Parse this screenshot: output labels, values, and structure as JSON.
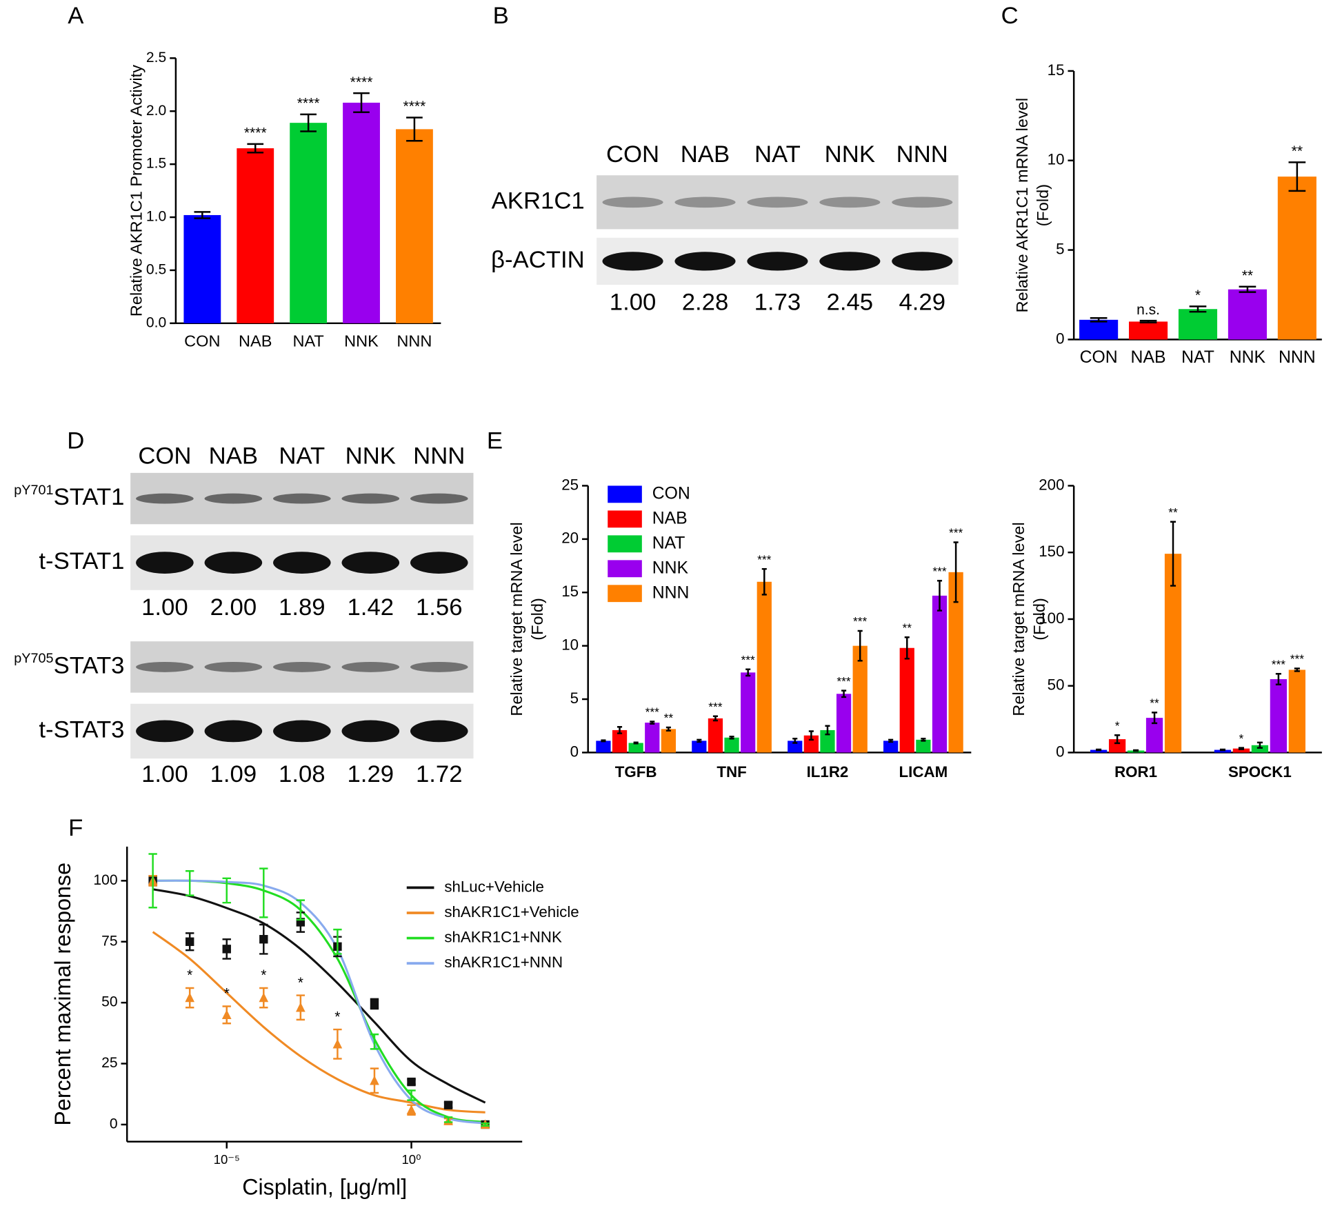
{
  "chart_data": [
    {
      "type": "bar",
      "panel": "A",
      "ylabel": [
        "Relative AKR1C1 Promoter Activity"
      ],
      "categories": [
        "CON",
        "NAB",
        "NAT",
        "NNK",
        "NNN"
      ],
      "values": [
        1.02,
        1.65,
        1.89,
        2.08,
        1.83
      ],
      "errors": [
        0.03,
        0.04,
        0.08,
        0.09,
        0.11
      ],
      "annotations": [
        null,
        "****",
        "****",
        "****",
        "****"
      ],
      "colors": [
        "#0000ff",
        "#ff0000",
        "#00cc33",
        "#9900ee",
        "#ff8000"
      ],
      "ylim": [
        0,
        2.5
      ],
      "yticks": [
        {
          "value": 0,
          "label": "0.0"
        },
        {
          "value": 0.5,
          "label": "0.5"
        },
        {
          "value": 1,
          "label": "1.0"
        },
        {
          "value": 1.5,
          "label": "1.5"
        },
        {
          "value": 2,
          "label": "2.0"
        },
        {
          "value": 2.5,
          "label": "2.5"
        }
      ]
    },
    {
      "type": "bar",
      "panel": "C",
      "ylabel": [
        "Relative AKR1C1 mRNA level",
        "(Fold)"
      ],
      "categories": [
        "CON",
        "NAB",
        "NAT",
        "NNK",
        "NNN"
      ],
      "values": [
        1.1,
        1.0,
        1.7,
        2.8,
        9.1
      ],
      "errors": [
        0.1,
        0.05,
        0.15,
        0.15,
        0.8
      ],
      "annotations": [
        null,
        "n.s.",
        "*",
        "**",
        "**"
      ],
      "colors": [
        "#0000ff",
        "#ff0000",
        "#00cc33",
        "#9900ee",
        "#ff8000"
      ],
      "ylim": [
        0,
        15
      ],
      "yticks": [
        0,
        5,
        10,
        15
      ]
    },
    {
      "type": "grouped_bar",
      "panel": "E",
      "ylabel": [
        "Relative target mRNA level",
        "(Fold)"
      ],
      "categories": [
        "TGFB",
        "TNF",
        "IL1R2",
        "LICAM"
      ],
      "series": [
        {
          "name": "CON",
          "color": "#0000ff",
          "values": [
            1.1,
            1.1,
            1.1,
            1.1
          ],
          "errors": [
            0.05,
            0.1,
            0.2,
            0.1
          ],
          "annotations": [
            null,
            null,
            null,
            null
          ]
        },
        {
          "name": "NAB",
          "color": "#ff0000",
          "values": [
            2.1,
            3.2,
            1.6,
            9.8
          ],
          "errors": [
            0.3,
            0.2,
            0.4,
            1.0
          ],
          "annotations": [
            null,
            "***",
            null,
            "**"
          ]
        },
        {
          "name": "NAT",
          "color": "#00cc33",
          "values": [
            0.9,
            1.4,
            2.1,
            1.2
          ],
          "errors": [
            0.05,
            0.1,
            0.4,
            0.1
          ],
          "annotations": [
            null,
            null,
            null,
            null
          ]
        },
        {
          "name": "NNK",
          "color": "#9900ee",
          "values": [
            2.8,
            7.5,
            5.5,
            14.7
          ],
          "errors": [
            0.1,
            0.3,
            0.3,
            1.4
          ],
          "annotations": [
            "***",
            "***",
            "***",
            "***"
          ]
        },
        {
          "name": "NNN",
          "color": "#ff8000",
          "values": [
            2.2,
            16,
            10,
            16.9
          ],
          "errors": [
            0.15,
            1.2,
            1.4,
            2.8
          ],
          "annotations": [
            "**",
            "***",
            "***",
            "***"
          ]
        }
      ],
      "ylim": [
        0,
        25
      ],
      "yticks": [
        0,
        5,
        10,
        15,
        20,
        25
      ],
      "legend": true
    },
    {
      "type": "grouped_bar",
      "ylabel": [
        "Relative target mRNA level",
        "(Fold)"
      ],
      "categories": [
        "ROR1",
        "SPOCK1"
      ],
      "series": [
        {
          "name": "CON",
          "color": "#0000ff",
          "values": [
            2,
            2
          ],
          "errors": [
            0.3,
            0.3
          ],
          "annotations": [
            null,
            null
          ]
        },
        {
          "name": "NAB",
          "color": "#ff0000",
          "values": [
            10,
            3
          ],
          "errors": [
            3,
            0.5
          ],
          "annotations": [
            "*",
            "*"
          ]
        },
        {
          "name": "NAT",
          "color": "#00cc33",
          "values": [
            1.5,
            5.5
          ],
          "errors": [
            0.3,
            2
          ],
          "annotations": [
            null,
            null
          ]
        },
        {
          "name": "NNK",
          "color": "#9900ee",
          "values": [
            26,
            55
          ],
          "errors": [
            4,
            4
          ],
          "annotations": [
            "**",
            "***"
          ]
        },
        {
          "name": "NNN",
          "color": "#ff8000",
          "values": [
            149,
            62
          ],
          "errors": [
            24,
            1
          ],
          "annotations": [
            "**",
            "***"
          ]
        }
      ],
      "ylim": [
        0,
        200
      ],
      "yticks": [
        0,
        50,
        100,
        150,
        200
      ],
      "legend": false
    },
    {
      "type": "line",
      "panel": "F",
      "ylabel": [
        "Percent maximal response"
      ],
      "xlabel": "Cisplatin, [μg/ml]",
      "xscale": "log",
      "x": [
        1e-07,
        1e-06,
        1e-05,
        0.0001,
        0.001,
        0.01,
        0.1,
        1,
        10,
        100
      ],
      "xlim": [
        2e-08,
        1000
      ],
      "xticks": [
        {
          "value": 1e-05,
          "label": "10⁻⁵"
        },
        {
          "value": 1,
          "label": "10⁰"
        }
      ],
      "ylim": [
        -7,
        114
      ],
      "yticks": [
        0,
        25,
        50,
        75,
        100
      ],
      "legend": "upper right",
      "series": [
        {
          "name": "shLuc+Vehicle",
          "color": "#111111",
          "marker": "square",
          "values": [
            100,
            75,
            72,
            76,
            83,
            73,
            49.5,
            17.5,
            8,
            0
          ],
          "errors": [
            2,
            3.5,
            4,
            6,
            4,
            4,
            2,
            1,
            1,
            0.5
          ],
          "fit_values": [
            96.5,
            93.7,
            88.8,
            82.5,
            72,
            58,
            42,
            26,
            16.5,
            9
          ],
          "annotations": [
            null,
            null,
            null,
            null,
            null,
            null,
            null,
            null,
            null,
            null
          ]
        },
        {
          "name": "shAKR1C1+Vehicle",
          "color": "#f08a24",
          "marker": "triangle",
          "values": [
            100,
            52,
            45,
            52,
            48,
            33,
            18,
            6,
            1.5,
            0
          ],
          "errors": [
            2,
            4,
            3.5,
            4,
            5,
            6,
            5,
            2,
            1,
            0.5
          ],
          "fit_values": [
            79,
            68,
            54,
            40,
            28,
            18.6,
            12,
            9,
            6,
            5
          ],
          "annotations": [
            null,
            "*",
            "*",
            "*",
            "*",
            "*",
            null,
            null,
            null,
            null
          ]
        },
        {
          "name": "shAKR1C1+NNK",
          "color": "#22dd22",
          "marker": null,
          "values": [
            100,
            99,
            96,
            95,
            88,
            75,
            34,
            12,
            2,
            0
          ],
          "errors": [
            11,
            5,
            5,
            10,
            4,
            5,
            3,
            2,
            1,
            0.5
          ],
          "fit_values": [
            100,
            100,
            99,
            96,
            88,
            68,
            35,
            12,
            3,
            1
          ],
          "annotations": [
            null,
            null,
            null,
            null,
            null,
            null,
            null,
            null,
            null,
            null
          ]
        },
        {
          "name": "shAKR1C1+NNN",
          "color": "#88aaee",
          "fit_values": [
            100,
            100,
            99.5,
            98,
            91,
            72,
            33,
            10,
            2.5,
            0.5
          ]
        }
      ]
    }
  ],
  "blots": [
    {
      "panel": "B",
      "lanes": [
        "CON",
        "NAB",
        "NAT",
        "NNK",
        "NNN"
      ],
      "groups": [
        {
          "rows": [
            {
              "label": "AKR1C1"
            },
            {
              "label": "β-ACTIN"
            }
          ],
          "quantification": [
            "1.00",
            "2.28",
            "1.73",
            "2.45",
            "4.29"
          ]
        }
      ]
    },
    {
      "panel": "D",
      "lanes": [
        "CON",
        "NAB",
        "NAT",
        "NNK",
        "NNN"
      ],
      "groups": [
        {
          "rows": [
            {
              "sup": "pY701",
              "label": "STAT1"
            },
            {
              "label": "t-STAT1"
            }
          ],
          "quantification": [
            "1.00",
            "2.00",
            "1.89",
            "1.42",
            "1.56"
          ]
        },
        {
          "rows": [
            {
              "sup": "pY705",
              "label": "STAT3"
            },
            {
              "label": "t-STAT3"
            }
          ],
          "quantification": [
            "1.00",
            "1.09",
            "1.08",
            "1.29",
            "1.72"
          ]
        }
      ]
    }
  ]
}
